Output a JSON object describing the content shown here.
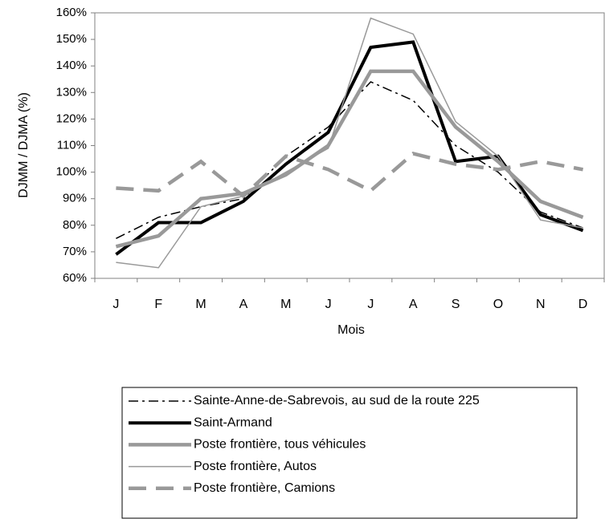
{
  "chart_data": {
    "type": "line",
    "y_label": "DJMM / DJMA (%)",
    "x_label": "Mois",
    "categories": [
      "J",
      "F",
      "M",
      "A",
      "M",
      "J",
      "J",
      "A",
      "S",
      "O",
      "N",
      "D"
    ],
    "ylim": [
      60,
      160
    ],
    "yticks": [
      {
        "value": 60,
        "label": "60%"
      },
      {
        "value": 70,
        "label": "70%"
      },
      {
        "value": 80,
        "label": "80%"
      },
      {
        "value": 90,
        "label": "90%"
      },
      {
        "value": 100,
        "label": "100%"
      },
      {
        "value": 110,
        "label": "110%"
      },
      {
        "value": 120,
        "label": "120%"
      },
      {
        "value": 130,
        "label": "130%"
      },
      {
        "value": 140,
        "label": "140%"
      },
      {
        "value": 150,
        "label": "150%"
      },
      {
        "value": 160,
        "label": "160%"
      }
    ],
    "grid": false,
    "series": [
      {
        "name": "Sainte-Anne-de-Sabrevois, au sud de la route 225",
        "color": "#000000",
        "linewidth": 1.5,
        "linestyle": "dashdot",
        "values": [
          75,
          83,
          87,
          90,
          106,
          117,
          134,
          127,
          110,
          100,
          85,
          79
        ]
      },
      {
        "name": "Saint-Armand",
        "color": "#000000",
        "linewidth": 4,
        "linestyle": "solid",
        "values": [
          69,
          81,
          81,
          89,
          103,
          115,
          147,
          149,
          104,
          106,
          84,
          78
        ]
      },
      {
        "name": "Poste frontière, tous véhicules",
        "color": "#999999",
        "linewidth": 4.5,
        "linestyle": "solid",
        "values": [
          72,
          76,
          90,
          92,
          99,
          110,
          138,
          138,
          117,
          104,
          89,
          83
        ]
      },
      {
        "name": "Poste frontière, Autos",
        "color": "#999999",
        "linewidth": 1.5,
        "linestyle": "solid",
        "values": [
          66,
          64,
          87,
          91,
          100,
          109,
          158,
          152,
          119,
          106,
          82,
          79
        ]
      },
      {
        "name": "Poste frontière, Camions",
        "color": "#999999",
        "linewidth": 4.5,
        "linestyle": "dashed",
        "values": [
          94,
          93,
          104,
          91,
          106,
          101,
          93,
          107,
          103,
          101,
          104,
          101
        ]
      }
    ]
  }
}
